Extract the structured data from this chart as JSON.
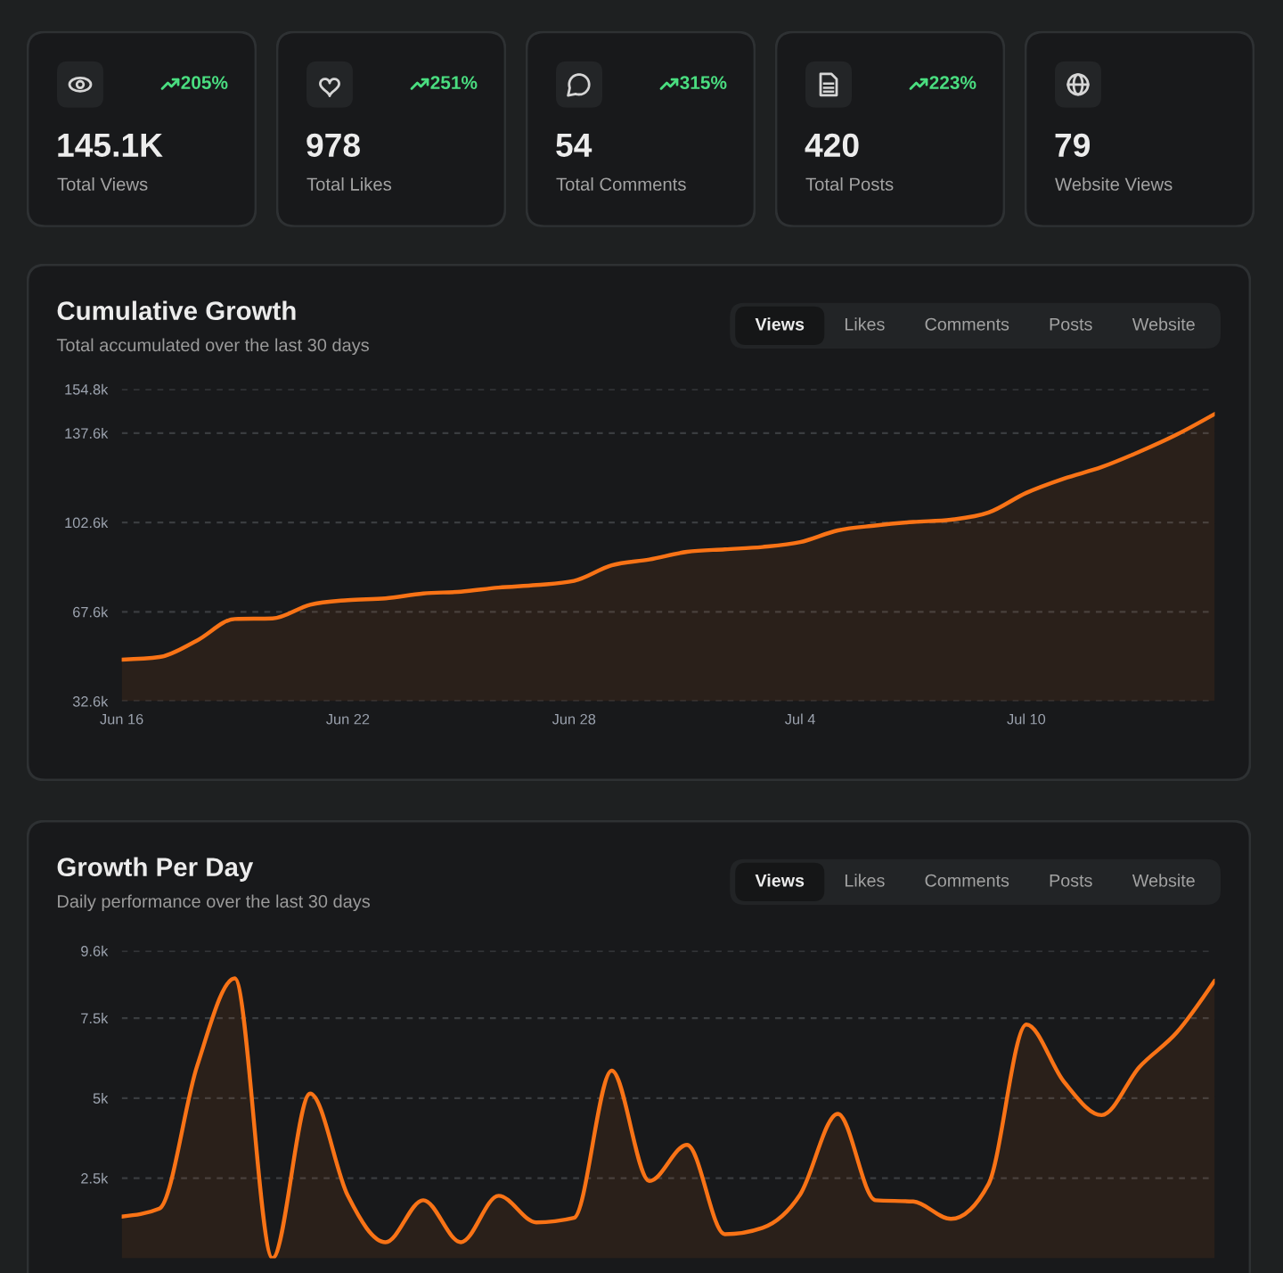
{
  "chart_data": [
    {
      "type": "other",
      "title": "Total Views",
      "annotations": [
        "145.1K",
        "205%"
      ]
    },
    {
      "type": "other",
      "title": "Total Likes",
      "annotations": [
        "978",
        "251%"
      ]
    },
    {
      "type": "other",
      "title": "Total Comments",
      "annotations": [
        "54",
        "315%"
      ]
    },
    {
      "type": "other",
      "title": "Total Posts",
      "annotations": [
        "420",
        "223%"
      ]
    },
    {
      "type": "other",
      "title": "Website Views",
      "annotations": [
        "79"
      ]
    },
    {
      "type": "area",
      "title": "Cumulative Growth",
      "subtitle": "Total accumulated over the last 30 days",
      "annotations": [
        "Views",
        "Likes",
        "Comments",
        "Posts",
        "Website"
      ],
      "categories": [
        "Jun 16",
        null,
        null,
        null,
        null,
        null,
        "Jun 22",
        null,
        null,
        null,
        null,
        null,
        "Jun 28",
        null,
        null,
        null,
        null,
        null,
        "Jul 4",
        null,
        null,
        null,
        null,
        null,
        "Jul 10",
        null,
        null,
        null,
        null,
        null
      ],
      "values": [
        48900,
        49900,
        56400,
        64800,
        65000,
        70400,
        72200,
        72900,
        74800,
        75500,
        77100,
        78100,
        79700,
        85800,
        88100,
        91100,
        92100,
        93000,
        94900,
        99500,
        101400,
        102800,
        103700,
        106500,
        114200,
        119800,
        124300,
        130300,
        137100,
        145100
      ],
      "color": "#f97316",
      "ylim": [
        32600,
        154800
      ],
      "yticks": [
        {
          "value": 32600,
          "label": "32.6k"
        },
        {
          "value": 67600,
          "label": "67.6k"
        },
        {
          "value": 102600,
          "label": "102.6k"
        },
        {
          "value": 137600,
          "label": "137.6k"
        },
        {
          "value": 154800,
          "label": "154.8k"
        }
      ],
      "grid": "y"
    },
    {
      "type": "area",
      "title": "Growth Per Day",
      "subtitle": "Daily performance over the last 30 days",
      "annotations": [
        "Views",
        "Likes",
        "Comments",
        "Posts",
        "Website"
      ],
      "categories": [
        null,
        null,
        null,
        null,
        null,
        null,
        null,
        null,
        null,
        null,
        null,
        null,
        null,
        null,
        null,
        null,
        null,
        null,
        null,
        null,
        null,
        null,
        null,
        null,
        null,
        null,
        null,
        null,
        null,
        null
      ],
      "values": [
        1300,
        1550,
        6000,
        8740,
        0,
        5140,
        1950,
        500,
        1810,
        500,
        1950,
        1120,
        1260,
        5860,
        2410,
        3540,
        750,
        950,
        1990,
        4510,
        1810,
        1770,
        1230,
        2320,
        7300,
        5510,
        4470,
        5970,
        7060,
        8670
      ],
      "color": "#f97316",
      "ylim": [
        0,
        9600
      ],
      "yticks": [
        {
          "value": 2500,
          "label": "2.5k"
        },
        {
          "value": 5000,
          "label": "5k"
        },
        {
          "value": 7500,
          "label": "7.5k"
        },
        {
          "value": 9600,
          "label": "9.6k"
        }
      ],
      "grid": "y",
      "tick_labels": "y"
    }
  ]
}
